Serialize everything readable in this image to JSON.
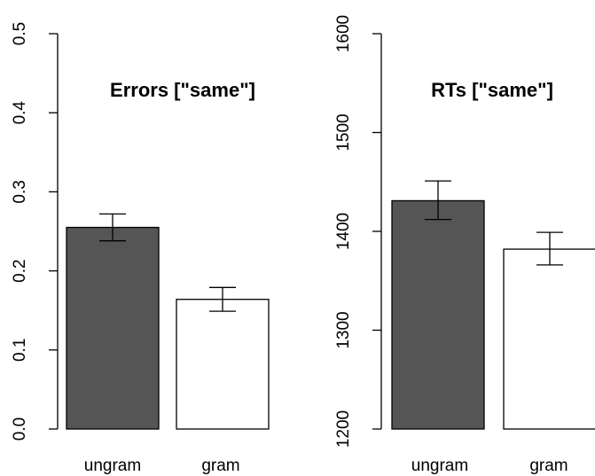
{
  "chart_data": [
    {
      "type": "bar",
      "title": "Errors [\"same\"]",
      "categories": [
        "ungram",
        "gram"
      ],
      "values": [
        0.255,
        0.164
      ],
      "error_low": [
        0.238,
        0.149
      ],
      "error_high": [
        0.272,
        0.179
      ],
      "colors": [
        "#555555",
        "#ffffff"
      ],
      "ylim": [
        0,
        0.5
      ],
      "yticks": [
        0.0,
        0.1,
        0.2,
        0.3,
        0.4,
        0.5
      ],
      "ytick_labels": [
        "0.0",
        "0.1",
        "0.2",
        "0.3",
        "0.4",
        "0.5"
      ],
      "grid": false
    },
    {
      "type": "bar",
      "title": "RTs [\"same\"]",
      "categories": [
        "ungram",
        "gram"
      ],
      "values": [
        1431,
        1382
      ],
      "error_low": [
        1412,
        1366
      ],
      "error_high": [
        1451,
        1399
      ],
      "colors": [
        "#555555",
        "#ffffff"
      ],
      "ylim": [
        1200,
        1600
      ],
      "yticks": [
        1200,
        1300,
        1400,
        1500,
        1600
      ],
      "ytick_labels": [
        "1200",
        "1300",
        "1400",
        "1500",
        "1600"
      ],
      "grid": false
    }
  ]
}
